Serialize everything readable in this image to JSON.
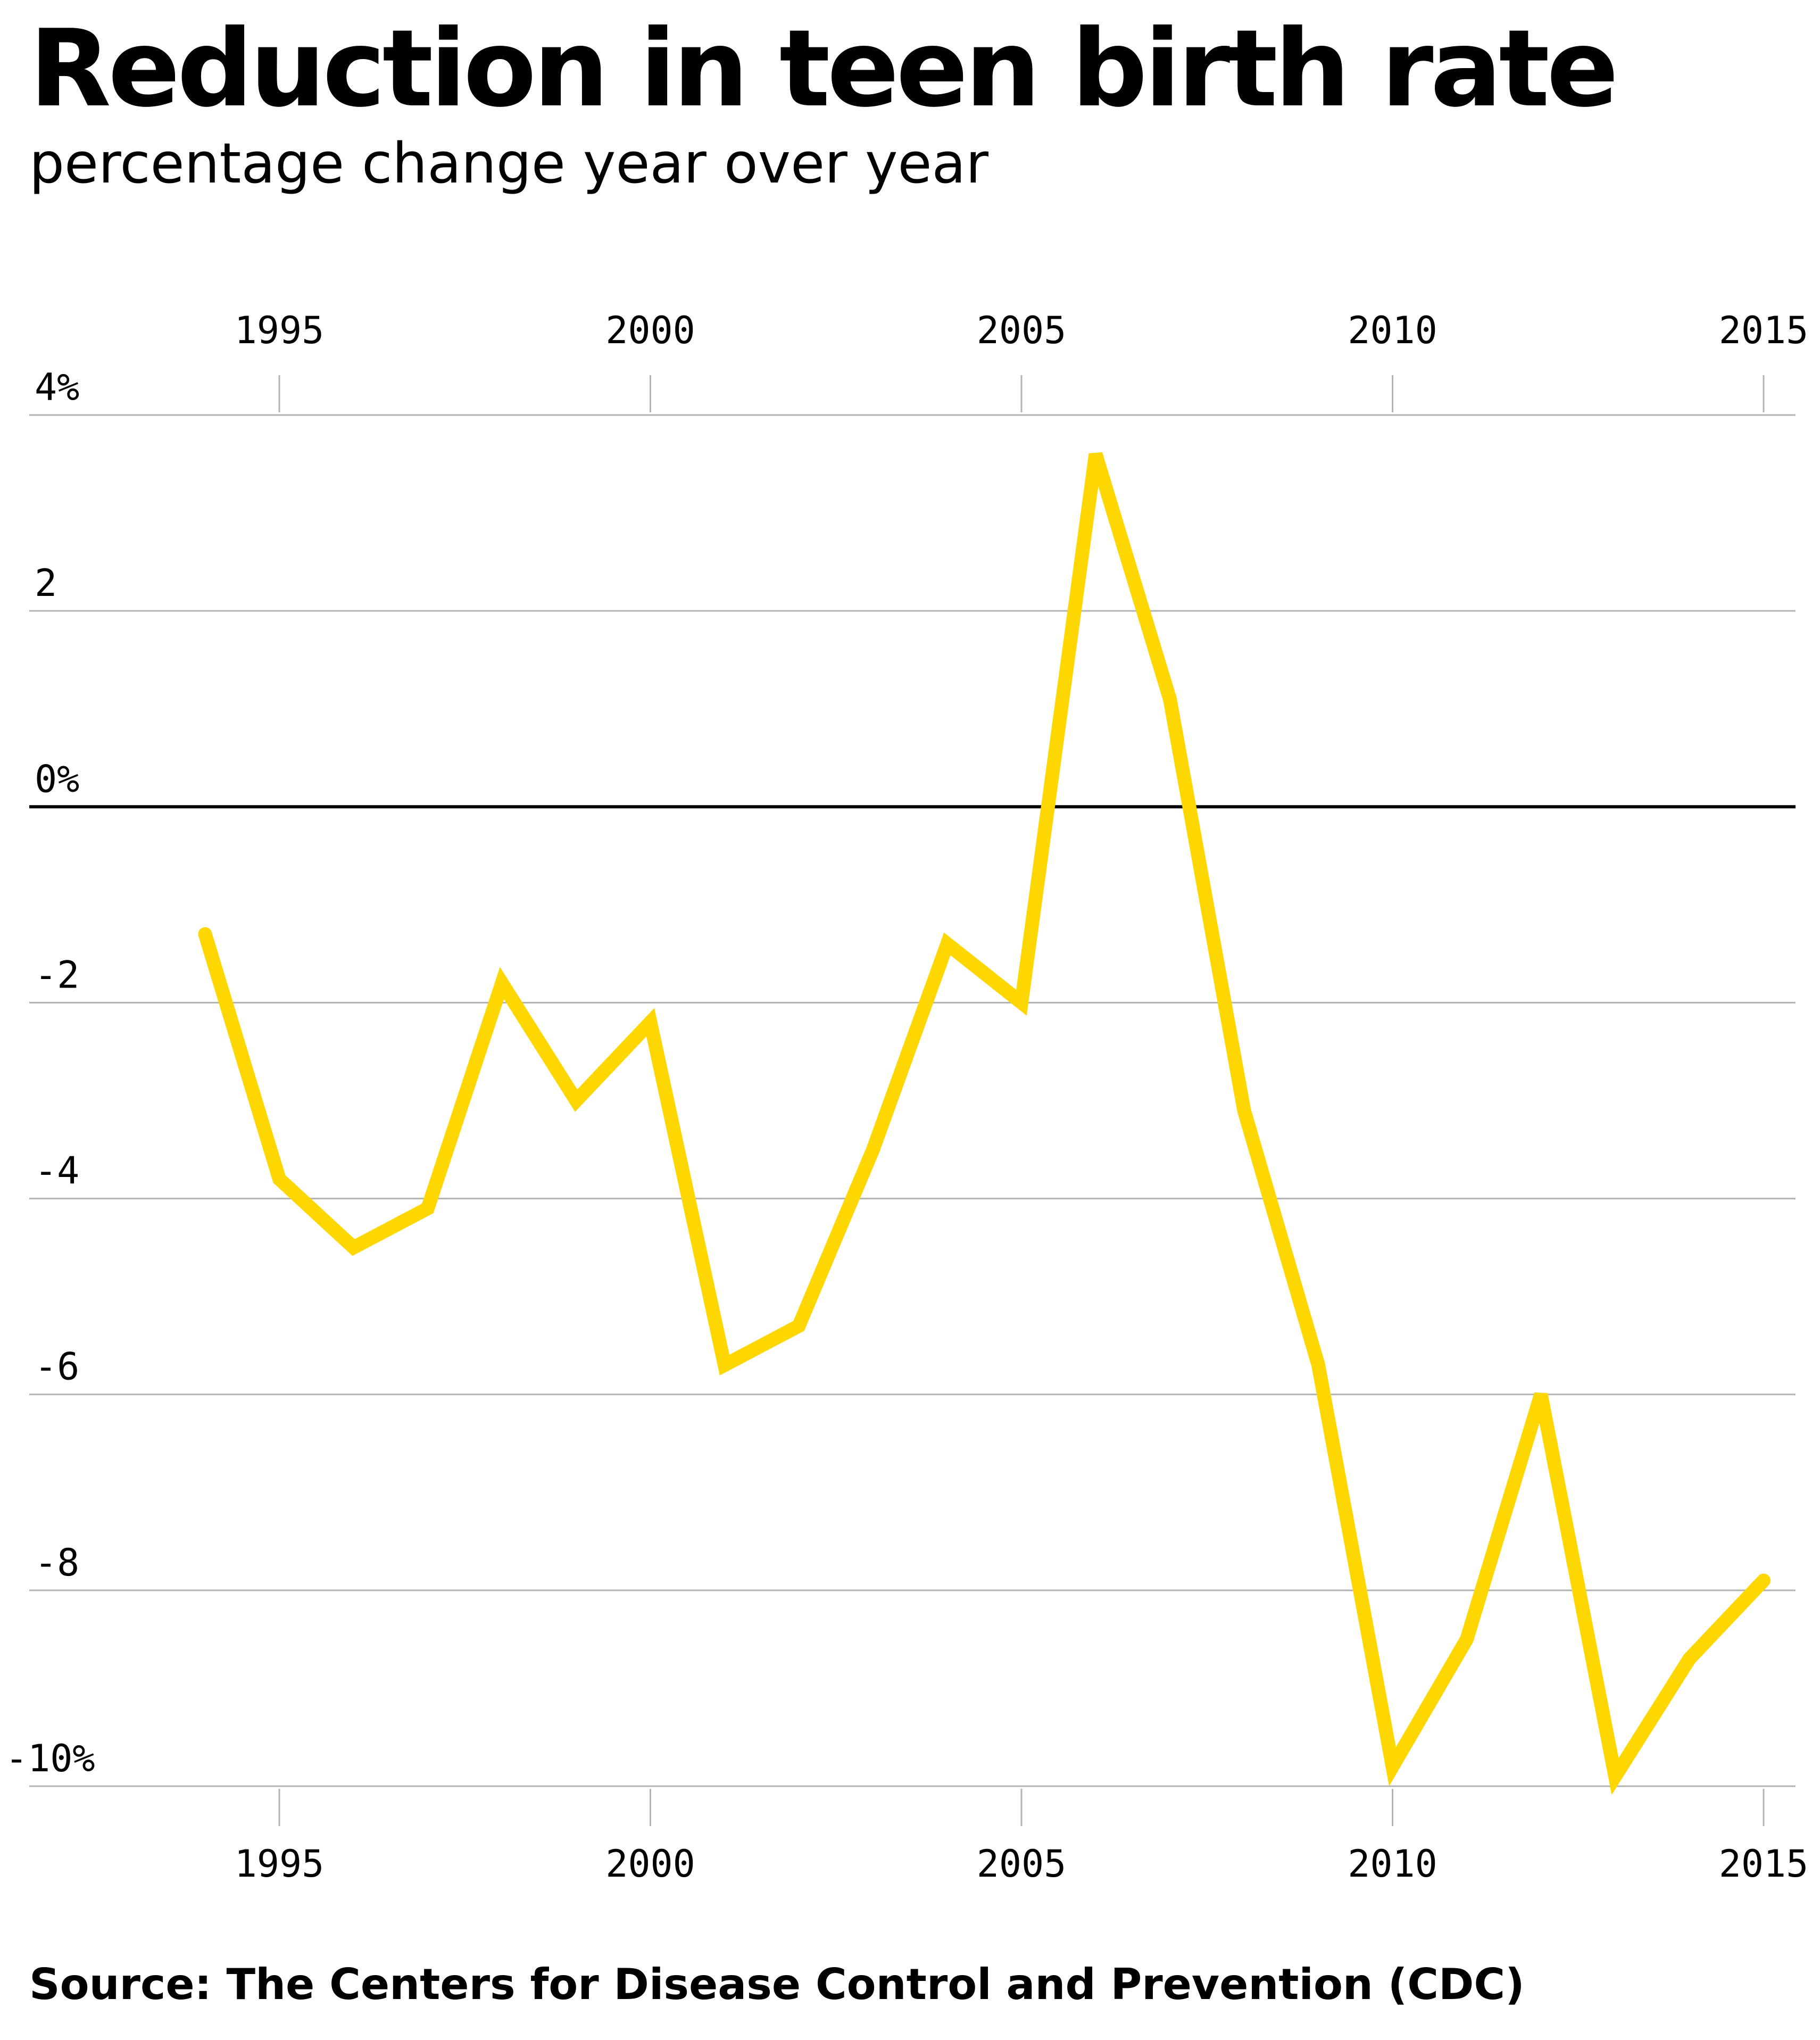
{
  "chart_data": {
    "type": "line",
    "title": "Reduction in teen birth rate",
    "subtitle": "percentage change year over year",
    "source": "Source: The Centers for Disease Control and Prevention (CDC)",
    "xlabel": "",
    "ylabel": "",
    "x_ticks": [
      1995,
      2000,
      2005,
      2010,
      2015
    ],
    "x_tick_labels": [
      "1995",
      "2000",
      "2005",
      "2010",
      "2015"
    ],
    "xlim": [
      1992.5,
      2015.4
    ],
    "y_ticks": [
      4,
      2,
      0,
      -2,
      -4,
      -6,
      -8,
      -10
    ],
    "y_tick_labels": [
      "4%",
      "2",
      "0%",
      "-2",
      "-4",
      "-6",
      "-8",
      "-10%"
    ],
    "ylim": [
      -10,
      4
    ],
    "grid": true,
    "x_axis_position": "top and bottom",
    "colors": {
      "line": "#FFD700",
      "grid": "#b3b3b3",
      "zero_line": "#000000"
    },
    "series": [
      {
        "x": [
          1994,
          1995,
          1996,
          1997,
          1998,
          1999,
          2000,
          2001,
          2002,
          2003,
          2004,
          2005,
          2006,
          2007,
          2008,
          2009,
          2010,
          2011,
          2012,
          2013,
          2014,
          2015
        ],
        "values": [
          -1.3,
          -3.8,
          -4.5,
          -4.1,
          -1.8,
          -3.0,
          -2.2,
          -5.7,
          -5.3,
          -3.5,
          -1.4,
          -2.0,
          3.6,
          1.1,
          -3.1,
          -5.7,
          -9.8,
          -8.5,
          -6.0,
          -9.9,
          -8.7,
          -7.9
        ]
      }
    ]
  }
}
